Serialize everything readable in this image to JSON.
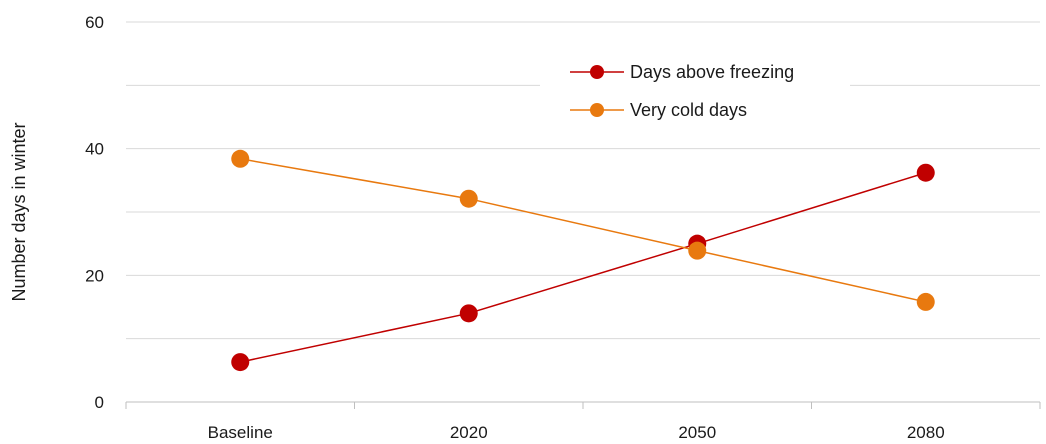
{
  "chart_data": {
    "type": "line",
    "categories": [
      "Baseline",
      "2020",
      "2050",
      "2080"
    ],
    "ylabel": "Number days in winter",
    "ylim": [
      0,
      60
    ],
    "yticks": [
      0,
      20,
      40,
      60
    ],
    "grid": true,
    "legend_position": "top-right",
    "series": [
      {
        "name": "Days above freezing",
        "color": "#c00000",
        "values": [
          6.3,
          14.0,
          25.0,
          36.2
        ]
      },
      {
        "name": "Very cold days",
        "color": "#e8790f",
        "values": [
          38.4,
          32.1,
          23.9,
          15.8
        ]
      }
    ]
  }
}
